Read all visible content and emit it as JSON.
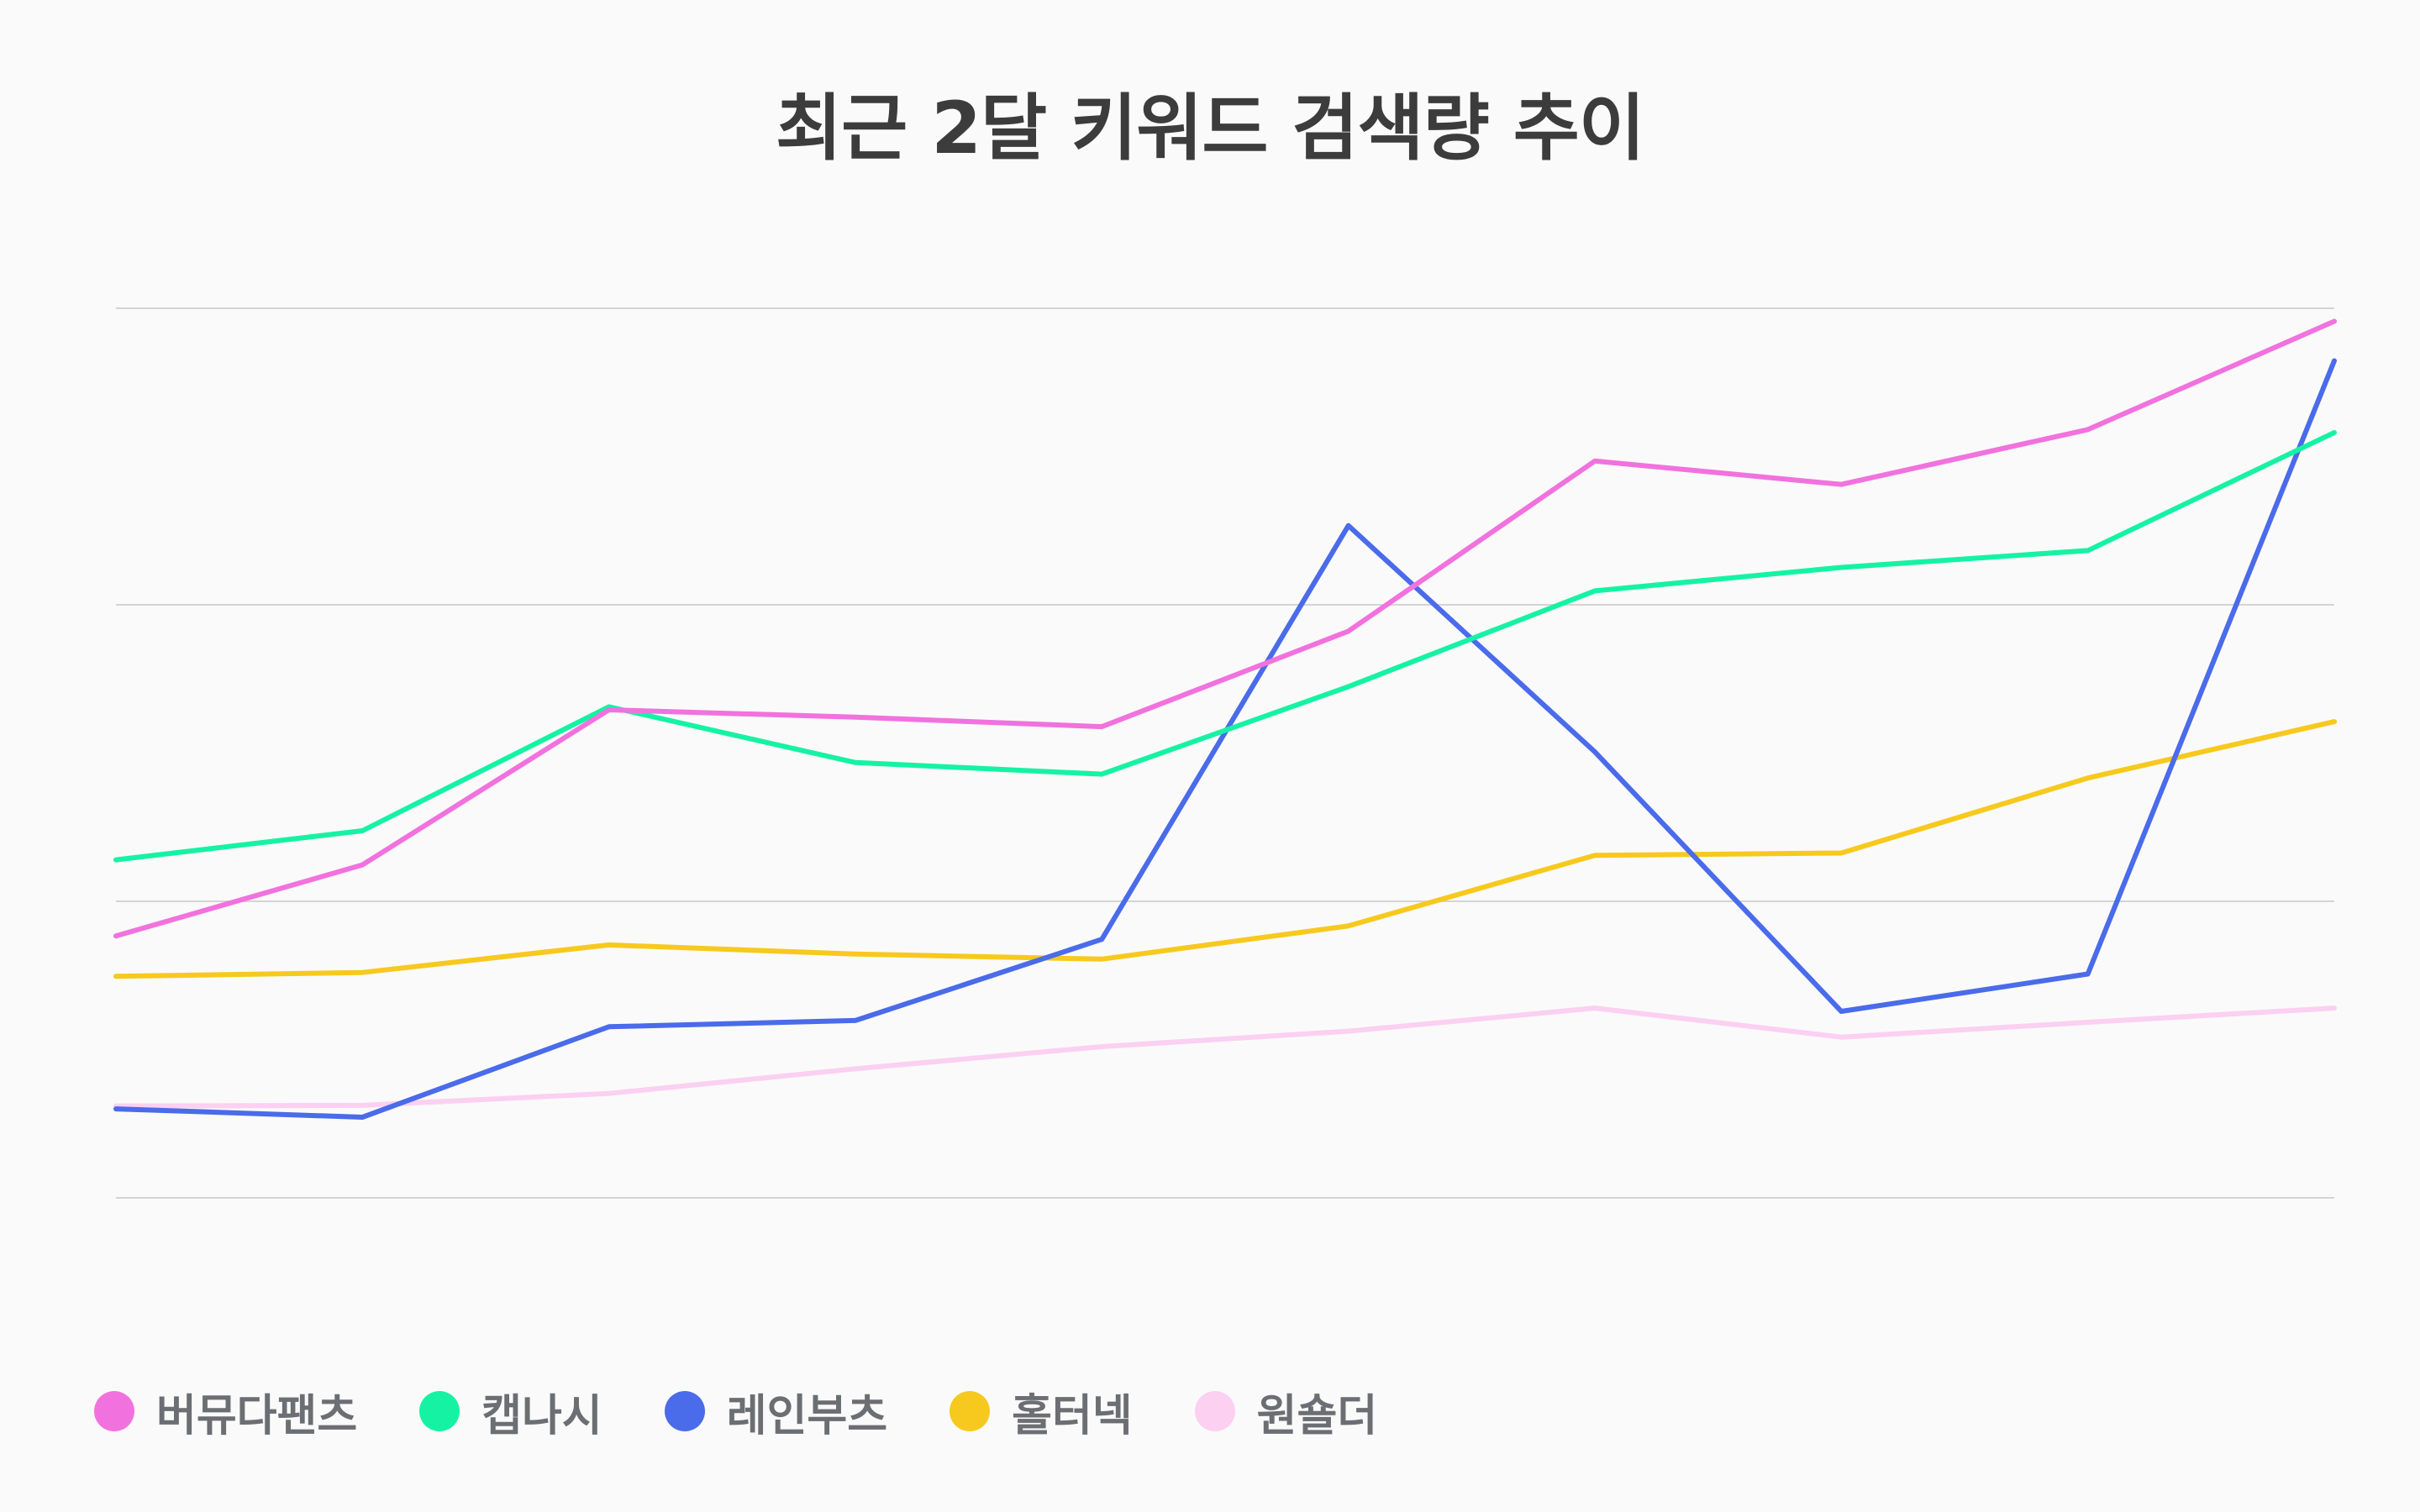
{
  "chart_data": {
    "type": "line",
    "title": "최근 2달 키워드 검색량 추이",
    "xlabel": "",
    "ylabel": "",
    "x": [
      0,
      1,
      2,
      3,
      4,
      5,
      6,
      7,
      8,
      9
    ],
    "ylim": [
      0,
      300
    ],
    "grid": true,
    "legend": "bottom-left",
    "series": [
      {
        "name": "버뮤다팬츠",
        "color": "#f172de",
        "values": [
          88.3,
          112.3,
          164.6,
          162.1,
          158.9,
          191.1,
          248.5,
          240.6,
          259.1,
          295.6
        ]
      },
      {
        "name": "캡나시",
        "color": "#16f2a4",
        "values": [
          114.0,
          123.8,
          165.6,
          146.8,
          142.9,
          172.4,
          204.7,
          212.6,
          218.3,
          258.1
        ]
      },
      {
        "name": "레인부츠",
        "color": "#4a6bea",
        "values": [
          30.0,
          27.2,
          57.7,
          59.8,
          87.2,
          226.7,
          150.4,
          62.9,
          75.5,
          282.3
        ]
      },
      {
        "name": "홀터넥",
        "color": "#f7c91e",
        "values": [
          74.7,
          76.0,
          85.3,
          82.2,
          80.5,
          91.7,
          115.5,
          116.3,
          141.6,
          160.6
        ]
      },
      {
        "name": "원숄더",
        "color": "#fbd0f1",
        "values": [
          31.0,
          31.2,
          35.2,
          43.5,
          51.0,
          56.2,
          64.0,
          54.2,
          59.2,
          64.0
        ]
      }
    ]
  }
}
